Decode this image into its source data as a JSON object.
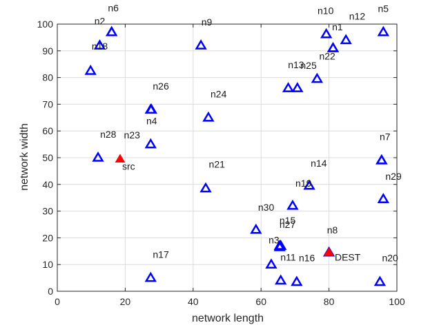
{
  "colors": {
    "node": "#0000ff",
    "special": "#ff0000",
    "grid": "#dcdcdc",
    "axis": "#262626"
  },
  "chart_data": {
    "type": "scatter",
    "title": "",
    "xlabel": "network length",
    "ylabel": "network width",
    "xlim": [
      0,
      100
    ],
    "ylim": [
      0,
      100
    ],
    "xticks": [
      0,
      20,
      40,
      60,
      80,
      100
    ],
    "yticks": [
      0,
      10,
      20,
      30,
      40,
      50,
      60,
      70,
      80,
      90,
      100
    ],
    "grid": true,
    "markers": "triangles",
    "points": [
      {
        "label": "n1",
        "x": 81.2,
        "y": 91.0,
        "lx": 82.5,
        "ly": 99.0,
        "kind": "node"
      },
      {
        "label": "n2",
        "x": 16.0,
        "y": 97.0,
        "lx": 12.5,
        "ly": 101.2,
        "kind": "node"
      },
      {
        "label": "n3",
        "x": 65.5,
        "y": 16.5,
        "lx": 63.8,
        "ly": 19.2,
        "kind": "node"
      },
      {
        "label": "n4",
        "x": 27.7,
        "y": 68.0,
        "lx": 27.8,
        "ly": 63.8,
        "kind": "node"
      },
      {
        "label": "n5",
        "x": 96.0,
        "y": 97.0,
        "lx": 96.0,
        "ly": 105.8,
        "kind": "node"
      },
      {
        "label": "n6",
        "x": 16.0,
        "y": 97.0,
        "lx": 16.5,
        "ly": 106.0,
        "kind": "node"
      },
      {
        "label": "n7",
        "x": 95.5,
        "y": 49.0,
        "lx": 96.5,
        "ly": 57.8,
        "kind": "node"
      },
      {
        "label": "n8",
        "x": 80.0,
        "y": 14.5,
        "lx": 81.0,
        "ly": 23.0,
        "kind": "node"
      },
      {
        "label": "n9",
        "x": 42.3,
        "y": 92.0,
        "lx": 44.0,
        "ly": 100.8,
        "kind": "node"
      },
      {
        "label": "n10",
        "x": 79.2,
        "y": 96.2,
        "lx": 79.0,
        "ly": 105.0,
        "kind": "node"
      },
      {
        "label": "n11",
        "x": 65.8,
        "y": 4.0,
        "lx": 68.0,
        "ly": 12.8,
        "kind": "node"
      },
      {
        "label": "n12",
        "x": 85.0,
        "y": 94.0,
        "lx": 88.3,
        "ly": 103.0,
        "kind": "node"
      },
      {
        "label": "n13",
        "x": 68.0,
        "y": 76.0,
        "lx": 70.3,
        "ly": 84.8,
        "kind": "node"
      },
      {
        "label": "n14",
        "x": 95.5,
        "y": 49.0,
        "lx": 77.0,
        "ly": 48.0,
        "kind": "node"
      },
      {
        "label": "n15",
        "x": 65.5,
        "y": 17.0,
        "lx": 67.8,
        "ly": 26.5,
        "kind": "node"
      },
      {
        "label": "n16",
        "x": 70.5,
        "y": 3.5,
        "lx": 73.5,
        "ly": 12.5,
        "kind": "node"
      },
      {
        "label": "n17",
        "x": 27.5,
        "y": 5.0,
        "lx": 30.5,
        "ly": 13.8,
        "kind": "node"
      },
      {
        "label": "n18",
        "x": 12.5,
        "y": 92.0,
        "lx": 12.5,
        "ly": 91.8,
        "kind": "node"
      },
      {
        "label": "n19",
        "x": 74.2,
        "y": 39.5,
        "lx": 72.5,
        "ly": 40.5,
        "kind": "node"
      },
      {
        "label": "n20",
        "x": 95.0,
        "y": 3.5,
        "lx": 98.0,
        "ly": 12.5,
        "kind": "node"
      },
      {
        "label": "n21",
        "x": 43.7,
        "y": 38.5,
        "lx": 47.0,
        "ly": 47.5,
        "kind": "node"
      },
      {
        "label": "n22",
        "x": 81.2,
        "y": 91.0,
        "lx": 79.5,
        "ly": 88.0,
        "kind": "node"
      },
      {
        "label": "n23",
        "x": 27.5,
        "y": 55.0,
        "lx": 22.0,
        "ly": 58.5,
        "kind": "node"
      },
      {
        "label": "n24",
        "x": 44.5,
        "y": 65.0,
        "lx": 47.5,
        "ly": 73.8,
        "kind": "node"
      },
      {
        "label": "n25",
        "x": 70.7,
        "y": 76.0,
        "lx": 74.0,
        "ly": 84.5,
        "kind": "node"
      },
      {
        "label": "n26",
        "x": 27.5,
        "y": 68.0,
        "lx": 30.5,
        "ly": 76.8,
        "kind": "node"
      },
      {
        "label": "n27",
        "x": 65.8,
        "y": 17.0,
        "lx": 67.8,
        "ly": 25.0,
        "kind": "node"
      },
      {
        "label": "n28",
        "x": 12.0,
        "y": 50.0,
        "lx": 15.0,
        "ly": 58.8,
        "kind": "node"
      },
      {
        "label": "n29",
        "x": 96.0,
        "y": 34.5,
        "lx": 99.0,
        "ly": 43.0,
        "kind": "node"
      },
      {
        "label": "n30",
        "x": 58.5,
        "y": 23.0,
        "lx": 61.5,
        "ly": 31.5,
        "kind": "node"
      },
      {
        "label": "",
        "x": 9.8,
        "y": 82.5,
        "lx": 9.8,
        "ly": 82.5,
        "kind": "node"
      },
      {
        "label": "",
        "x": 76.5,
        "y": 79.5,
        "lx": 76.5,
        "ly": 79.5,
        "kind": "node"
      },
      {
        "label": "",
        "x": 69.3,
        "y": 32.0,
        "lx": 69.3,
        "ly": 32.0,
        "kind": "node"
      },
      {
        "label": "",
        "x": 63.0,
        "y": 10.0,
        "lx": 63.0,
        "ly": 10.0,
        "kind": "node"
      },
      {
        "label": "src",
        "x": 18.5,
        "y": 49.5,
        "lx": 21.0,
        "ly": 46.8,
        "kind": "special"
      },
      {
        "label": "DEST",
        "x": 80.0,
        "y": 14.5,
        "lx": 85.5,
        "ly": 12.8,
        "kind": "special"
      }
    ]
  }
}
